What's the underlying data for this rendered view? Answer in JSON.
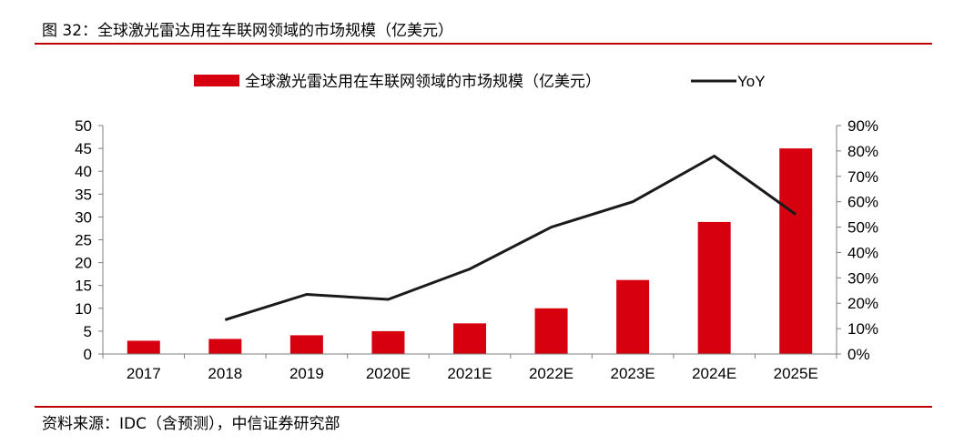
{
  "figure": {
    "title": "图 32：全球激光雷达用在车联网领域的市场规模（亿美元）",
    "source": "资料来源：IDC（含预测），中信证券研究部"
  },
  "colors": {
    "bar": "#d7000f",
    "line": "#1a1a1a",
    "rule": "#c00000",
    "axis": "#7f7f7f"
  },
  "chart_data": {
    "type": "bar",
    "title": "",
    "categories": [
      "2017",
      "2018",
      "2019",
      "2020E",
      "2021E",
      "2022E",
      "2023E",
      "2024E",
      "2025E"
    ],
    "series": [
      {
        "name": "全球激光雷达用在车联网领域的市场规模（亿美元）",
        "type": "bar",
        "axis": "left",
        "values": [
          2.9,
          3.3,
          4.1,
          5.0,
          6.7,
          10.0,
          16.2,
          28.9,
          45.0
        ]
      },
      {
        "name": "YoY",
        "type": "line",
        "axis": "right",
        "values": [
          null,
          0.135,
          0.235,
          0.215,
          0.335,
          0.5,
          0.6,
          0.78,
          0.55
        ]
      }
    ],
    "ylim_left": [
      0,
      50
    ],
    "yticks_left": [
      "0",
      "5",
      "10",
      "15",
      "20",
      "25",
      "30",
      "35",
      "40",
      "45",
      "50"
    ],
    "ylim_right": [
      0,
      0.9
    ],
    "yticks_right": [
      "0%",
      "10%",
      "20%",
      "30%",
      "40%",
      "50%",
      "60%",
      "70%",
      "80%",
      "90%"
    ],
    "grid": false,
    "legend_position": "top-center"
  }
}
